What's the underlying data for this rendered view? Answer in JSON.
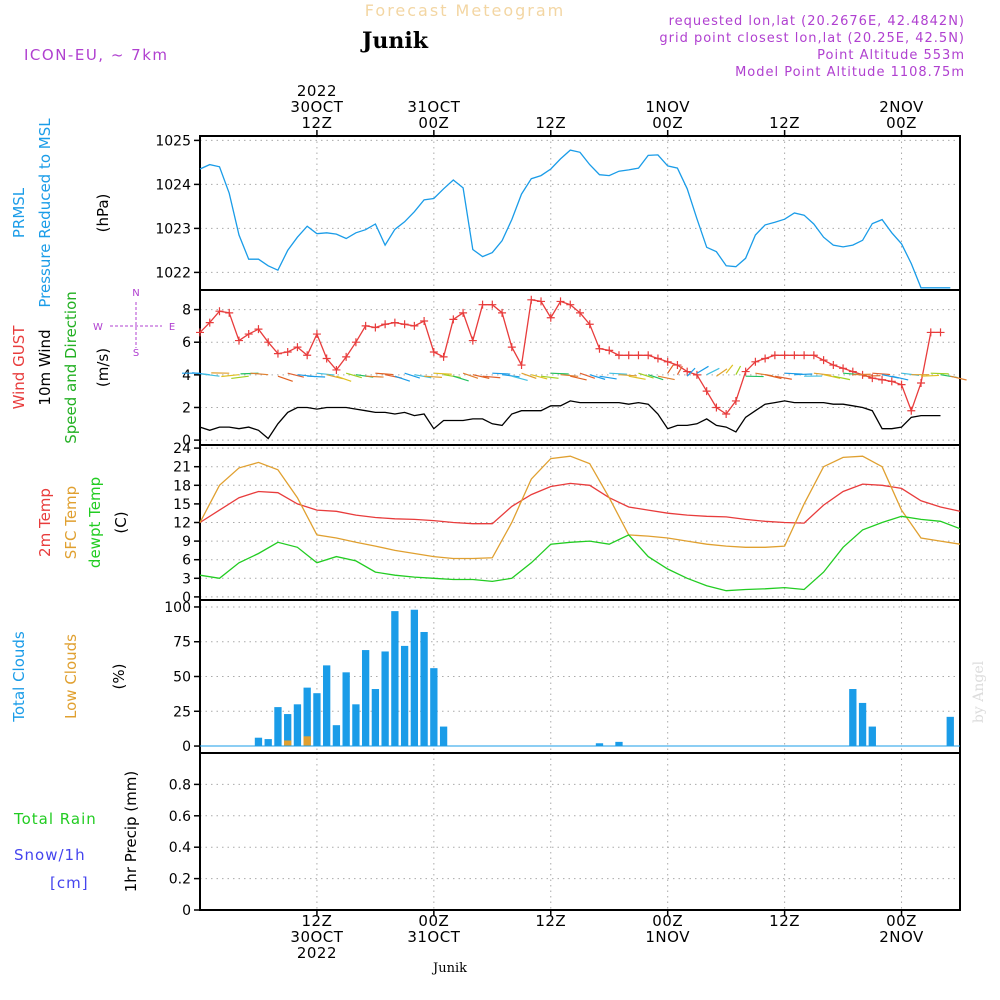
{
  "header": {
    "title": "Forecast Meteogram",
    "location": "Junik",
    "model": "ICON-EU, ~ 7km",
    "info": [
      "requested lon,lat (20.2676E, 42.4842N)",
      "grid point closest lon,lat (20.25E, 42.5N)",
      "Point Altitude 553m",
      "Model Point Altitude 1108.75m"
    ],
    "footer_location": "Junik",
    "credit": "by Angel"
  },
  "colors": {
    "pressure": "#1a9ce8",
    "gust": "#e83c3c",
    "wind": "#000000",
    "direction": "#22b022",
    "temp": "#e83c3c",
    "sfc": "#e0a030",
    "dewpt": "#22cc22",
    "total_clouds": "#1a9ce8",
    "low_clouds": "#e0a030",
    "rain": "#22cc22",
    "snow": "#4444ee",
    "info": "#b040d0"
  },
  "time_axis": {
    "top": [
      {
        "t": 12,
        "lines": [
          "2022",
          "30OCT",
          "12Z"
        ]
      },
      {
        "t": 24,
        "lines": [
          "31OCT",
          "00Z"
        ]
      },
      {
        "t": 36,
        "lines": [
          "12Z"
        ]
      },
      {
        "t": 48,
        "lines": [
          "1NOV",
          "00Z"
        ]
      },
      {
        "t": 60,
        "lines": [
          "12Z"
        ]
      },
      {
        "t": 72,
        "lines": [
          "2NOV",
          "00Z"
        ]
      }
    ],
    "bottom": [
      {
        "t": 12,
        "lines": [
          "12Z",
          "30OCT",
          "2022"
        ]
      },
      {
        "t": 24,
        "lines": [
          "00Z",
          "31OCT"
        ]
      },
      {
        "t": 36,
        "lines": [
          "12Z"
        ]
      },
      {
        "t": 48,
        "lines": [
          "00Z",
          "1NOV"
        ]
      },
      {
        "t": 60,
        "lines": [
          "12Z"
        ]
      },
      {
        "t": 72,
        "lines": [
          "00Z",
          "2NOV"
        ]
      }
    ]
  },
  "chart_data": [
    {
      "type": "line",
      "panel": "pressure",
      "label_lines": [
        {
          "text": "PRMSL",
          "color": "pressure"
        },
        {
          "text": "Pressure Reduced to MSL",
          "color": "pressure"
        }
      ],
      "ylabel": "(hPa)",
      "ylim": [
        1021.6,
        1025.1
      ],
      "yticks": [
        1022,
        1023,
        1024,
        1025
      ],
      "series": [
        {
          "name": "PRMSL",
          "color": "pressure",
          "x": [
            0,
            1,
            2,
            3,
            4,
            5,
            6,
            7,
            8,
            9,
            10,
            11,
            12,
            13,
            14,
            15,
            16,
            17,
            18,
            19,
            20,
            21,
            22,
            23,
            24,
            25,
            26,
            27,
            28,
            29,
            30,
            31,
            32,
            33,
            34,
            35,
            36,
            37,
            38,
            39,
            40,
            41,
            42,
            43,
            44,
            45,
            46,
            47,
            48,
            49,
            50,
            51,
            52,
            53,
            54,
            55,
            56,
            57,
            58,
            59,
            60,
            61,
            62,
            63,
            64,
            65,
            66,
            67,
            68,
            69,
            70,
            71,
            72,
            73,
            74,
            75,
            76,
            77
          ],
          "y": [
            1024.35,
            1024.45,
            1024.4,
            1023.8,
            1022.85,
            1022.3,
            1022.3,
            1022.15,
            1022.05,
            1022.5,
            1022.8,
            1023.05,
            1022.88,
            1022.9,
            1022.87,
            1022.77,
            1022.9,
            1022.97,
            1023.1,
            1022.62,
            1022.98,
            1023.15,
            1023.38,
            1023.65,
            1023.68,
            1023.9,
            1024.1,
            1023.92,
            1022.52,
            1022.36,
            1022.45,
            1022.72,
            1023.2,
            1023.78,
            1024.13,
            1024.2,
            1024.35,
            1024.58,
            1024.78,
            1024.73,
            1024.45,
            1024.22,
            1024.2,
            1024.3,
            1024.33,
            1024.37,
            1024.66,
            1024.67,
            1024.42,
            1024.37,
            1023.9,
            1023.22,
            1022.57,
            1022.47,
            1022.15,
            1022.13,
            1022.32,
            1022.85,
            1023.08,
            1023.14,
            1023.21,
            1023.35,
            1023.3,
            1023.1,
            1022.8,
            1022.62,
            1022.58,
            1022.62,
            1022.73,
            1023.11,
            1023.2,
            1022.9,
            1022.65,
            1022.2,
            1021.65,
            1021.65,
            1021.65,
            1021.65
          ]
        }
      ]
    },
    {
      "type": "line",
      "panel": "wind",
      "label_lines": [
        {
          "text": "Wind GUST",
          "color": "gust"
        },
        {
          "text": "10m Wind",
          "color": "wind"
        },
        {
          "text": "Speed and Direction",
          "color": "direction"
        }
      ],
      "ylabel": "(m/s)",
      "compass": {
        "n": "N",
        "s": "S",
        "e": "E",
        "w": "W"
      },
      "ylim": [
        -0.3,
        9.2
      ],
      "yticks": [
        0,
        2,
        4,
        6,
        8
      ],
      "series": [
        {
          "name": "Wind GUST",
          "color": "gust",
          "marker": "+",
          "x": [
            0,
            1,
            2,
            3,
            4,
            5,
            6,
            7,
            8,
            9,
            10,
            11,
            12,
            13,
            14,
            15,
            16,
            17,
            18,
            19,
            20,
            21,
            22,
            23,
            24,
            25,
            26,
            27,
            28,
            29,
            30,
            31,
            32,
            33,
            34,
            35,
            36,
            37,
            38,
            39,
            40,
            41,
            42,
            43,
            44,
            45,
            46,
            47,
            48,
            49,
            50,
            51,
            52,
            53,
            54,
            55,
            56,
            57,
            58,
            59,
            60,
            61,
            62,
            63,
            64,
            65,
            66,
            67,
            68,
            69,
            70,
            71,
            72,
            73,
            74,
            75,
            76
          ],
          "y": [
            6.6,
            7.2,
            7.9,
            7.8,
            6.1,
            6.5,
            6.8,
            6.0,
            5.3,
            5.4,
            5.7,
            5.2,
            6.5,
            5.0,
            4.3,
            5.1,
            6.0,
            7.0,
            6.9,
            7.1,
            7.2,
            7.1,
            7.0,
            7.3,
            5.4,
            5.1,
            7.4,
            7.8,
            6.1,
            8.3,
            8.3,
            7.8,
            5.7,
            4.6,
            8.6,
            8.5,
            7.5,
            8.5,
            8.3,
            7.8,
            7.1,
            5.6,
            5.5,
            5.2,
            5.2,
            5.2,
            5.2,
            5.0,
            4.8,
            4.6,
            4.2,
            4.0,
            3.0,
            2.0,
            1.6,
            2.4,
            4.2,
            4.8,
            5.0,
            5.2,
            5.2,
            5.2,
            5.2,
            5.2,
            4.9,
            4.6,
            4.4,
            4.2,
            4.0,
            3.8,
            3.7,
            3.6,
            3.4,
            1.8,
            3.5,
            6.6,
            6.6
          ]
        },
        {
          "name": "10m Wind",
          "color": "wind",
          "marker": "",
          "x": [
            0,
            1,
            2,
            3,
            4,
            5,
            6,
            7,
            8,
            9,
            10,
            11,
            12,
            13,
            14,
            15,
            16,
            17,
            18,
            19,
            20,
            21,
            22,
            23,
            24,
            25,
            26,
            27,
            28,
            29,
            30,
            31,
            32,
            33,
            34,
            35,
            36,
            37,
            38,
            39,
            40,
            41,
            42,
            43,
            44,
            45,
            46,
            47,
            48,
            49,
            50,
            51,
            52,
            53,
            54,
            55,
            56,
            57,
            58,
            59,
            60,
            61,
            62,
            63,
            64,
            65,
            66,
            67,
            68,
            69,
            70,
            71,
            72,
            73,
            74,
            75,
            76
          ],
          "y": [
            0.8,
            0.6,
            0.8,
            0.8,
            0.7,
            0.8,
            0.6,
            0.1,
            1.0,
            1.7,
            2.0,
            2.0,
            1.9,
            2.0,
            2.0,
            2.0,
            1.9,
            1.8,
            1.7,
            1.7,
            1.6,
            1.7,
            1.5,
            1.6,
            0.7,
            1.2,
            1.2,
            1.2,
            1.3,
            1.3,
            1.0,
            0.9,
            1.6,
            1.8,
            1.8,
            1.8,
            2.1,
            2.1,
            2.4,
            2.3,
            2.3,
            2.3,
            2.3,
            2.3,
            2.2,
            2.3,
            2.2,
            1.6,
            0.7,
            0.9,
            0.9,
            1.0,
            1.3,
            0.9,
            0.8,
            0.5,
            1.4,
            1.8,
            2.2,
            2.3,
            2.4,
            2.3,
            2.3,
            2.3,
            2.3,
            2.2,
            2.2,
            2.1,
            2.0,
            1.8,
            0.7,
            0.7,
            0.8,
            1.4,
            1.5,
            1.5,
            1.5
          ]
        }
      ]
    },
    {
      "type": "line",
      "panel": "temperature",
      "label_lines": [
        {
          "text": "2m Temp",
          "color": "temp"
        },
        {
          "text": "SFC Temp",
          "color": "sfc"
        },
        {
          "text": "dewpt Temp",
          "color": "dewpt"
        }
      ],
      "ylabel": "(C)",
      "ylim": [
        -0.5,
        24.5
      ],
      "yticks": [
        0,
        3,
        6,
        9,
        12,
        15,
        18,
        21,
        24
      ],
      "series": [
        {
          "name": "2m Temp",
          "color": "temp",
          "x": [
            0,
            2,
            4,
            6,
            8,
            10,
            12,
            14,
            16,
            18,
            20,
            22,
            24,
            26,
            28,
            30,
            32,
            34,
            36,
            38,
            40,
            42,
            44,
            46,
            48,
            50,
            52,
            54,
            56,
            58,
            60,
            62,
            64,
            66,
            68,
            70,
            72,
            74,
            76,
            78
          ],
          "y": [
            12.0,
            14.0,
            16.0,
            17.0,
            16.8,
            15.0,
            14.0,
            13.8,
            13.2,
            12.8,
            12.6,
            12.5,
            12.3,
            12.0,
            11.8,
            11.8,
            14.6,
            16.5,
            17.8,
            18.3,
            18.0,
            16.0,
            14.5,
            14.0,
            13.5,
            13.2,
            13.0,
            12.9,
            12.5,
            12.2,
            12.0,
            11.9,
            14.8,
            17.0,
            18.2,
            18.0,
            17.5,
            15.5,
            14.5,
            13.8
          ]
        },
        {
          "name": "SFC Temp",
          "color": "sfc",
          "x": [
            0,
            2,
            4,
            6,
            8,
            10,
            12,
            14,
            16,
            18,
            20,
            22,
            24,
            26,
            28,
            30,
            32,
            34,
            36,
            38,
            40,
            42,
            44,
            46,
            48,
            50,
            52,
            54,
            56,
            58,
            60,
            62,
            64,
            66,
            68,
            70,
            72,
            74,
            76,
            78
          ],
          "y": [
            12.0,
            18.0,
            20.8,
            21.7,
            20.5,
            16.0,
            10.0,
            9.5,
            8.8,
            8.2,
            7.5,
            7.0,
            6.5,
            6.2,
            6.2,
            6.3,
            12.0,
            19.0,
            22.3,
            22.7,
            21.5,
            16.0,
            10.0,
            9.8,
            9.5,
            9.0,
            8.5,
            8.2,
            8.0,
            8.0,
            8.2,
            15.0,
            21.0,
            22.5,
            22.7,
            21.0,
            14.0,
            9.5,
            9.0,
            8.5
          ]
        },
        {
          "name": "dewpt Temp",
          "color": "dewpt",
          "x": [
            0,
            2,
            4,
            6,
            8,
            10,
            12,
            14,
            16,
            18,
            20,
            22,
            24,
            26,
            28,
            30,
            32,
            34,
            36,
            38,
            40,
            42,
            44,
            46,
            48,
            50,
            52,
            54,
            56,
            58,
            60,
            62,
            64,
            66,
            68,
            70,
            72,
            74,
            76,
            78
          ],
          "y": [
            3.5,
            3.0,
            5.5,
            7.0,
            8.8,
            8.0,
            5.5,
            6.5,
            5.8,
            4.0,
            3.5,
            3.2,
            3.0,
            2.8,
            2.8,
            2.5,
            3.0,
            5.5,
            8.5,
            8.8,
            9.0,
            8.5,
            10.0,
            6.5,
            4.5,
            3.0,
            1.8,
            1.0,
            1.2,
            1.3,
            1.5,
            1.2,
            4.0,
            8.0,
            10.8,
            12.0,
            13.0,
            12.5,
            12.2,
            11.0
          ]
        }
      ]
    },
    {
      "type": "bar",
      "panel": "clouds",
      "label_lines": [
        {
          "text": "Total Clouds",
          "color": "total_clouds"
        },
        {
          "text": "Low Clouds",
          "color": "low_clouds"
        }
      ],
      "ylabel": "(%)",
      "ylim": [
        -5,
        105
      ],
      "yticks": [
        0,
        25,
        50,
        75,
        100
      ],
      "series": [
        {
          "name": "Total Clouds",
          "color": "total_clouds",
          "x": [
            6,
            7,
            8,
            9,
            10,
            11,
            12,
            13,
            14,
            15,
            16,
            17,
            18,
            19,
            20,
            21,
            22,
            23,
            24,
            25,
            41,
            43,
            67,
            68,
            69,
            77
          ],
          "values": [
            6,
            5,
            28,
            23,
            30,
            42,
            38,
            58,
            15,
            53,
            30,
            69,
            41,
            68,
            97,
            72,
            98,
            82,
            56,
            14,
            2,
            3,
            41,
            31,
            14,
            21
          ]
        },
        {
          "name": "Low Clouds",
          "color": "low_clouds",
          "x": [
            9,
            11
          ],
          "values": [
            4,
            7
          ]
        }
      ]
    },
    {
      "type": "bar",
      "panel": "precip",
      "label_lines": [
        {
          "text": "Total Rain",
          "color": "rain"
        },
        {
          "text": "Snow/1h",
          "color": "snow"
        },
        {
          "text": "[cm]",
          "color": "snow"
        }
      ],
      "ylabel": "1hr Precip (mm)",
      "ylim": [
        0,
        1.0
      ],
      "yticks": [
        0,
        0.2,
        0.4,
        0.6,
        0.8
      ],
      "series": []
    }
  ]
}
